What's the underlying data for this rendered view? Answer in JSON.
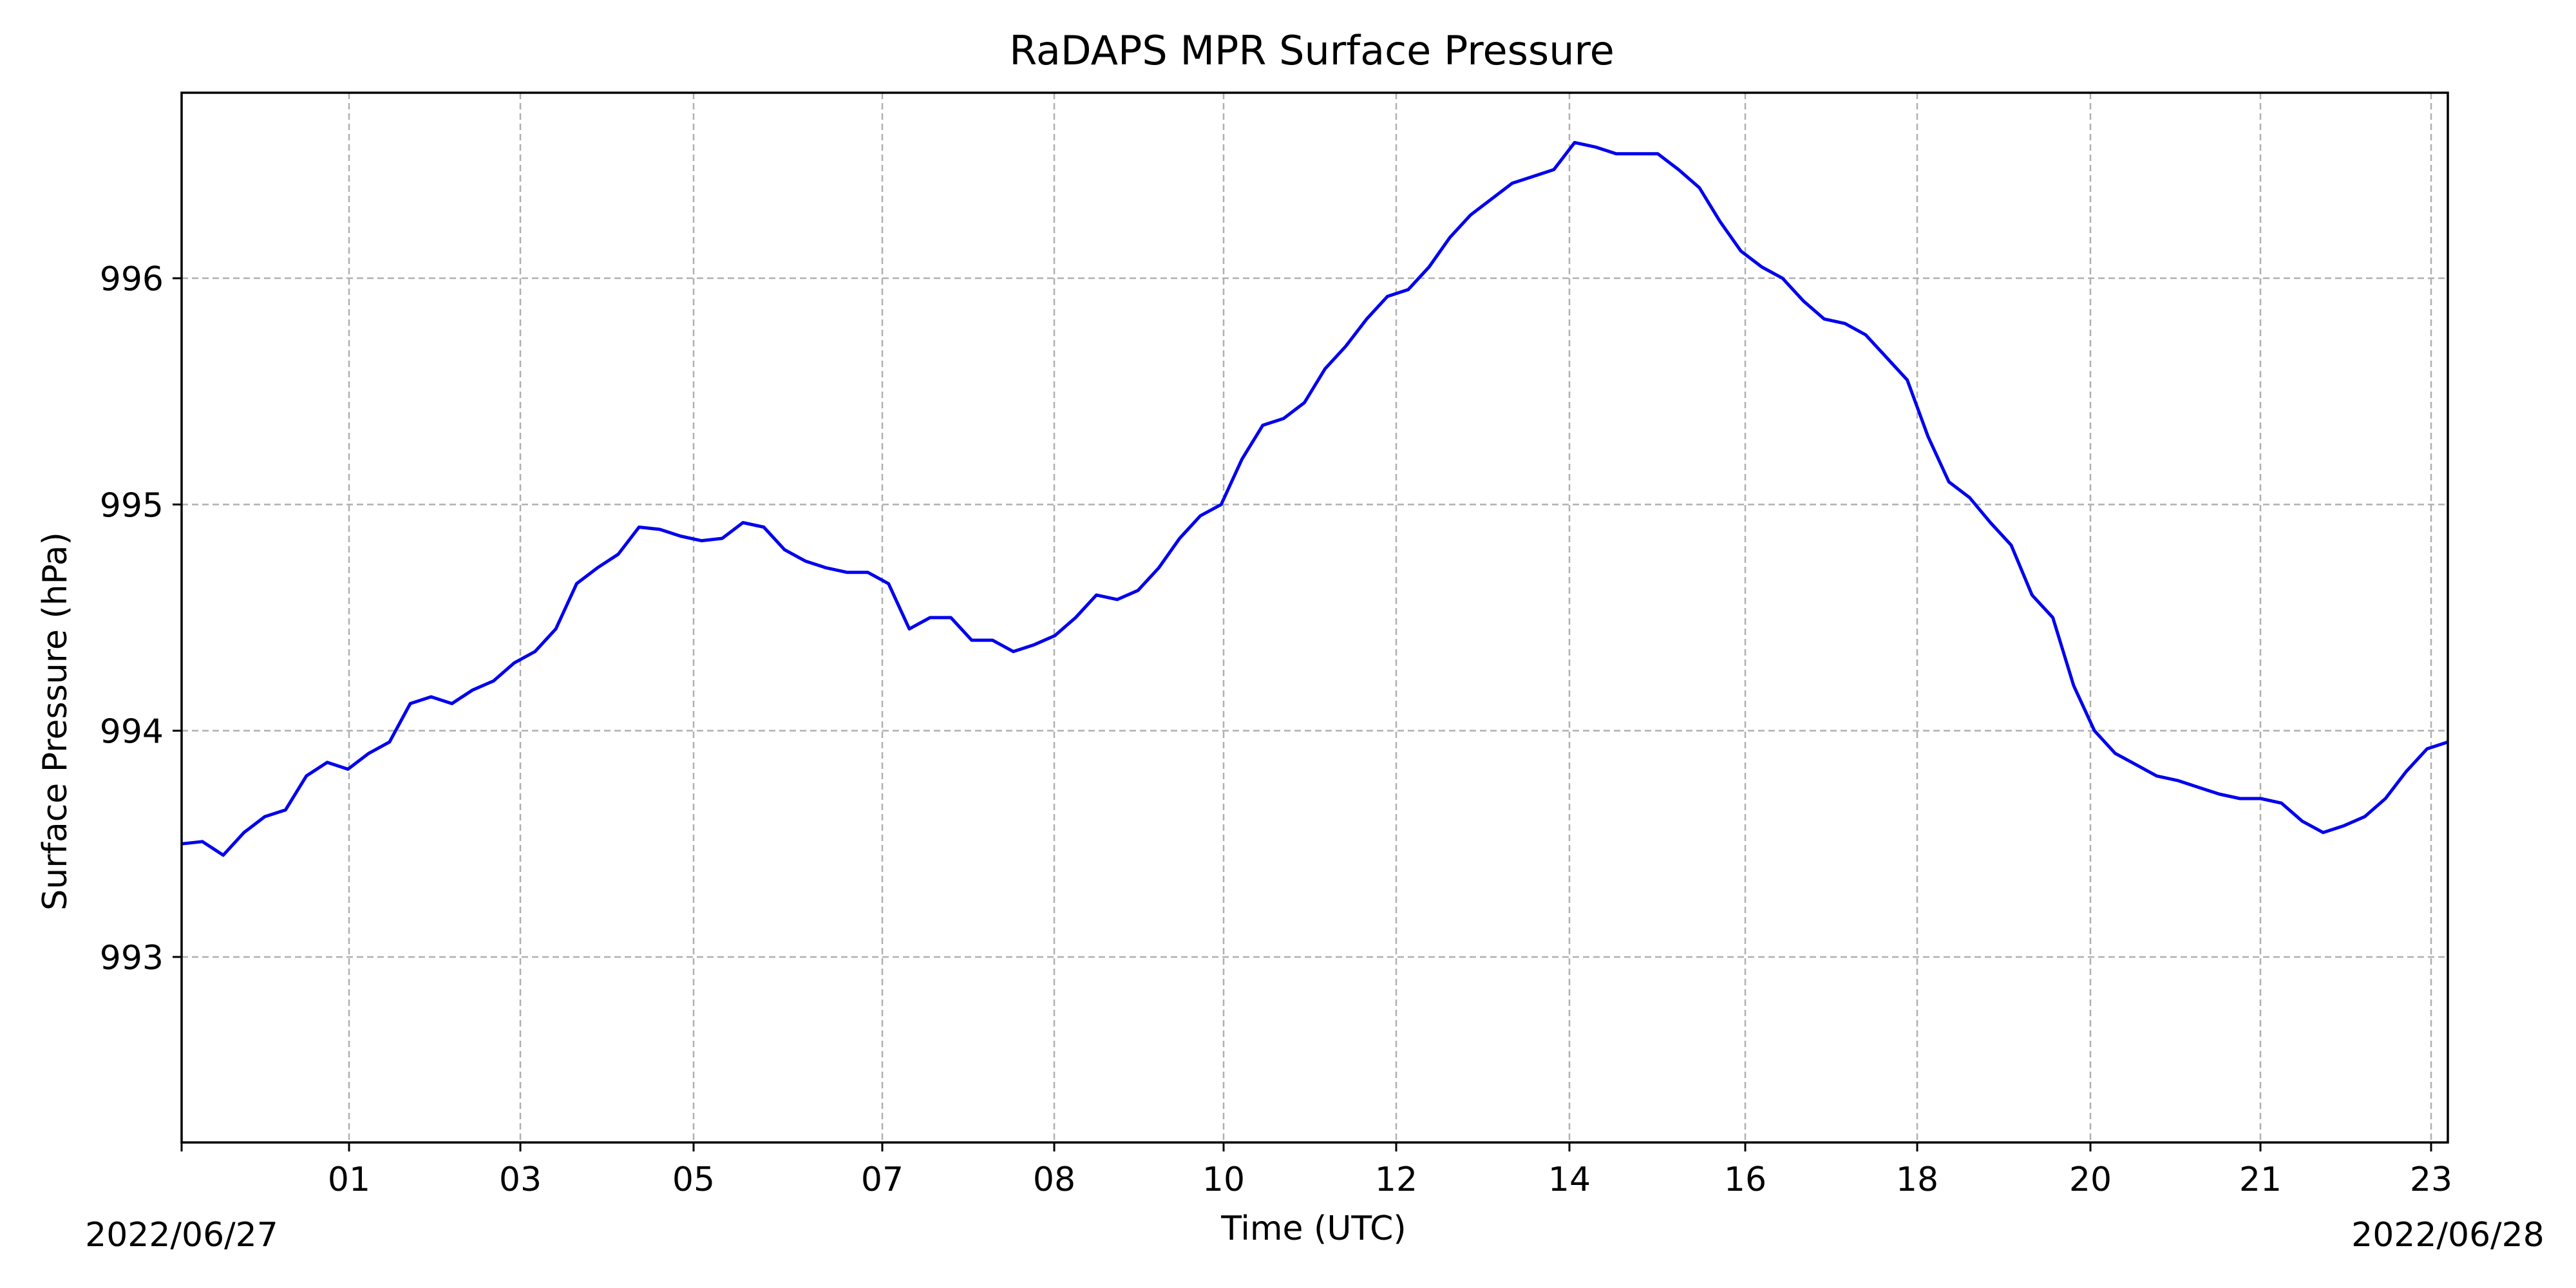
{
  "chart_data": {
    "type": "line",
    "title": "RaDAPS MPR Surface Pressure",
    "xlabel": "Time (UTC)",
    "ylabel": "Surface Pressure (hPa)",
    "date_start_label": "2022/06/27",
    "date_end_label": "2022/06/28",
    "x_tick_labels": [
      "01",
      "03",
      "05",
      "07",
      "08",
      "10",
      "12",
      "14",
      "16",
      "18",
      "20",
      "21",
      "23"
    ],
    "y_tick_labels": [
      "993",
      "994",
      "995",
      "996"
    ],
    "y_ticks": [
      993,
      994,
      995,
      996
    ],
    "ylim": [
      992.18,
      996.82
    ],
    "grid": true,
    "series": [
      {
        "color": "#0000ee",
        "values": [
          993.5,
          993.51,
          993.45,
          993.55,
          993.62,
          993.65,
          993.8,
          993.86,
          993.83,
          993.9,
          993.95,
          994.12,
          994.15,
          994.12,
          994.18,
          994.22,
          994.3,
          994.35,
          994.45,
          994.65,
          994.72,
          994.78,
          994.9,
          994.89,
          994.86,
          994.84,
          994.85,
          994.92,
          994.9,
          994.8,
          994.75,
          994.72,
          994.7,
          994.7,
          994.65,
          994.45,
          994.5,
          994.5,
          994.4,
          994.4,
          994.35,
          994.38,
          994.42,
          994.5,
          994.6,
          994.58,
          994.62,
          994.72,
          994.85,
          994.95,
          995.0,
          995.2,
          995.35,
          995.38,
          995.45,
          995.6,
          995.7,
          995.82,
          995.92,
          995.95,
          996.05,
          996.18,
          996.28,
          996.35,
          996.42,
          996.45,
          996.48,
          996.6,
          996.58,
          996.55,
          996.55,
          996.55,
          996.48,
          996.4,
          996.25,
          996.12,
          996.05,
          996.0,
          995.9,
          995.82,
          995.8,
          995.75,
          995.65,
          995.55,
          995.3,
          995.1,
          995.03,
          994.92,
          994.82,
          994.6,
          994.5,
          994.2,
          994.0,
          993.9,
          993.85,
          993.8,
          993.78,
          993.75,
          993.72,
          993.7,
          993.7,
          993.68,
          993.6,
          993.55,
          993.58,
          993.62,
          993.7,
          993.82,
          993.92,
          993.95
        ]
      }
    ]
  }
}
